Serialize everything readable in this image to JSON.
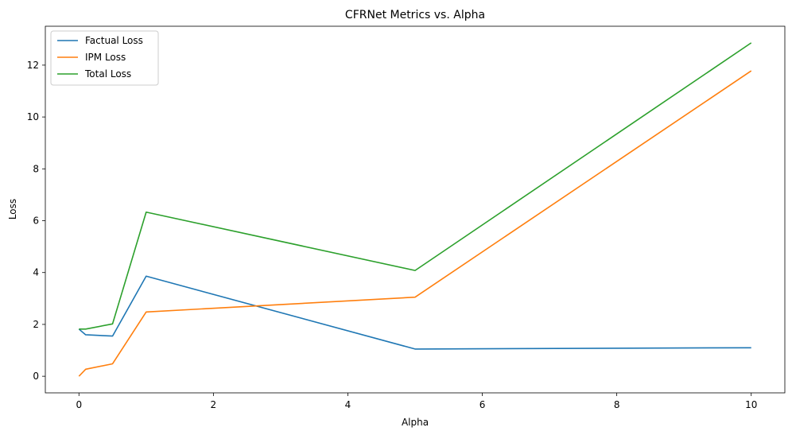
{
  "chart_data": {
    "type": "line",
    "title": "CFRNet Metrics vs. Alpha",
    "xlabel": "Alpha",
    "ylabel": "Loss",
    "xlim": [
      -0.5,
      10.5
    ],
    "ylim": [
      -0.64,
      13.5
    ],
    "xticks": [
      0,
      2,
      4,
      6,
      8,
      10
    ],
    "yticks": [
      0,
      2,
      4,
      6,
      8,
      10,
      12
    ],
    "x": [
      0,
      0.1,
      0.5,
      1,
      5,
      10
    ],
    "series": [
      {
        "name": "Factual Loss",
        "color": "#1f77b4",
        "values": [
          1.82,
          1.6,
          1.55,
          3.86,
          1.05,
          1.1
        ]
      },
      {
        "name": "IPM Loss",
        "color": "#ff7f0e",
        "values": [
          0.0,
          0.27,
          0.48,
          2.48,
          3.05,
          11.78
        ]
      },
      {
        "name": "Total Loss",
        "color": "#2ca02c",
        "values": [
          1.82,
          1.82,
          2.02,
          6.33,
          4.08,
          12.86
        ]
      }
    ],
    "grid": false,
    "legend_position": "upper-left"
  }
}
